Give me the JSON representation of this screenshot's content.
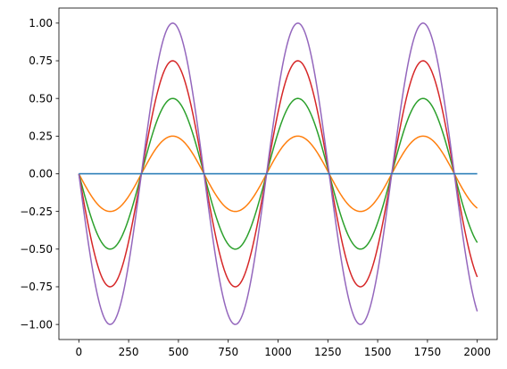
{
  "chart_data": {
    "type": "line",
    "title": "",
    "xlabel": "",
    "ylabel": "",
    "xlim": [
      -100,
      2100
    ],
    "ylim": [
      -1.1,
      1.1
    ],
    "grid": false,
    "legend": "none",
    "x_ticks": [
      0,
      250,
      500,
      750,
      1000,
      1250,
      1500,
      1750,
      2000
    ],
    "x_tick_labels": [
      "0",
      "250",
      "500",
      "750",
      "1000",
      "1250",
      "1500",
      "1750",
      "2000"
    ],
    "y_ticks": [
      -1.0,
      -0.75,
      -0.5,
      -0.25,
      0.0,
      0.25,
      0.5,
      0.75,
      1.0
    ],
    "y_tick_labels": [
      "−1.00",
      "−0.75",
      "−0.50",
      "−0.25",
      "0.00",
      "0.25",
      "0.50",
      "0.75",
      "1.00"
    ],
    "x_range": [
      0,
      2000
    ],
    "period": 628.3,
    "series": [
      {
        "amplitude": 0.0,
        "function": "-sin",
        "color": "#1f77b4"
      },
      {
        "amplitude": 0.25,
        "function": "-sin",
        "color": "#ff7f0e"
      },
      {
        "amplitude": 0.5,
        "function": "-sin",
        "color": "#2ca02c"
      },
      {
        "amplitude": 0.75,
        "function": "-sin",
        "color": "#d62728"
      },
      {
        "amplitude": 1.0,
        "function": "-sin",
        "color": "#9467bd"
      }
    ]
  }
}
